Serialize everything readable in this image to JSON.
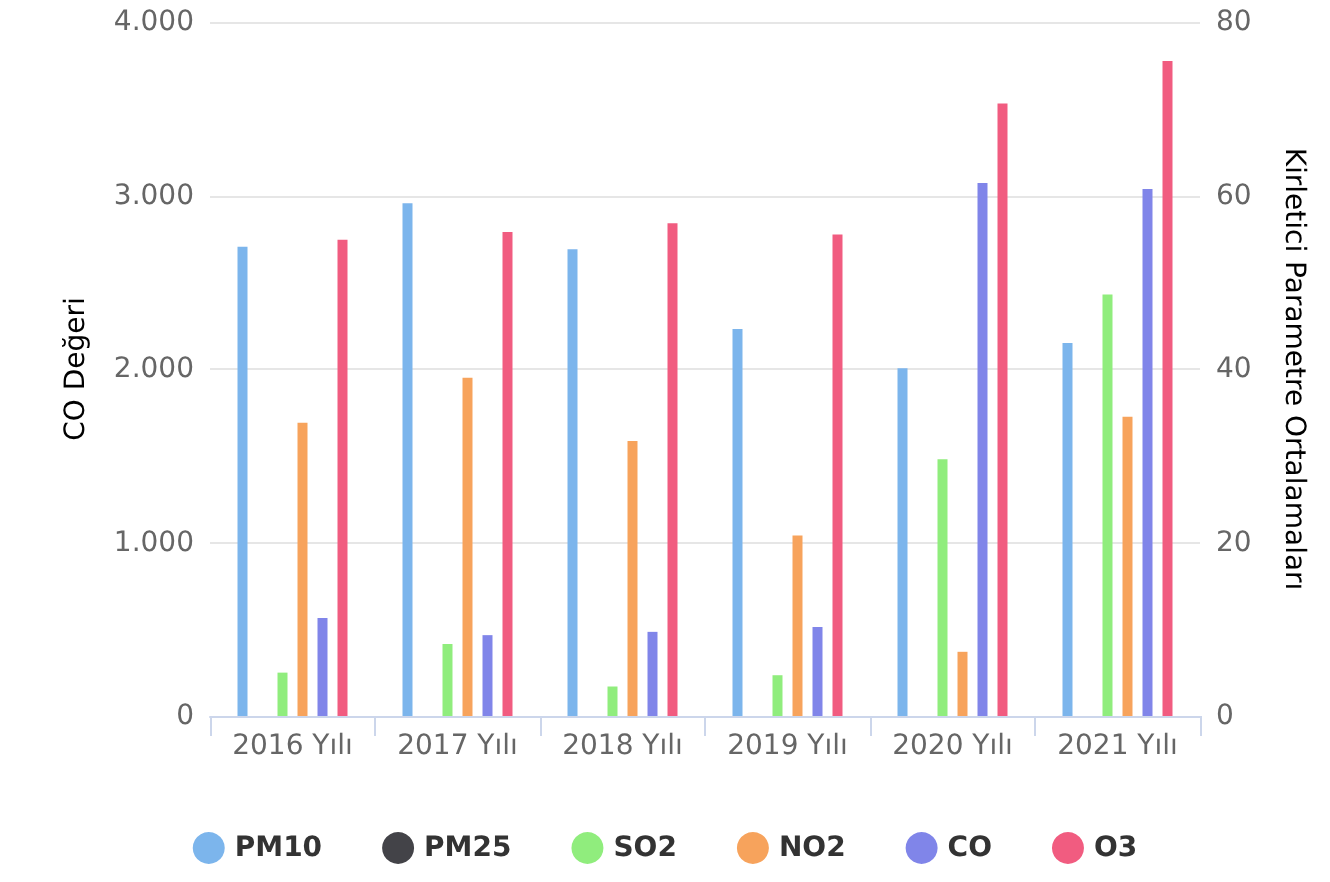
{
  "chart_data": {
    "type": "bar",
    "ylabel": "CO Değeri",
    "y2label": "Kirletici Parametre Ortalamaları",
    "categories": [
      "2016 Yılı",
      "2017 Yılı",
      "2018 Yılı",
      "2019 Yılı",
      "2020 Yılı",
      "2021 Yılı"
    ],
    "series": [
      {
        "name": "PM10",
        "color": "#7cb5ec",
        "axis": "y2",
        "values": [
          54.1,
          59.1,
          53.8,
          44.6,
          40.1,
          43.0
        ]
      },
      {
        "name": "PM25",
        "color": "#434348",
        "axis": "y2",
        "values": [
          null,
          null,
          null,
          null,
          null,
          null
        ]
      },
      {
        "name": "SO2",
        "color": "#90ed7d",
        "axis": "y2",
        "values": [
          5.0,
          8.3,
          3.4,
          4.7,
          29.6,
          48.6
        ]
      },
      {
        "name": "NO2",
        "color": "#f7a35c",
        "axis": "y2",
        "values": [
          33.8,
          39.0,
          31.7,
          20.8,
          7.4,
          34.5
        ]
      },
      {
        "name": "CO",
        "color": "#8085e9",
        "axis": "y",
        "values": [
          565,
          466,
          485,
          513,
          3072,
          3038
        ]
      },
      {
        "name": "O3",
        "color": "#f15c80",
        "axis": "y2",
        "values": [
          54.9,
          55.8,
          56.8,
          55.5,
          70.6,
          75.5
        ]
      }
    ],
    "ylim": [
      0,
      4000
    ],
    "yticks": [
      0,
      {
        "value": 1000,
        "label": "1.000"
      },
      {
        "value": 2000,
        "label": "2.000"
      },
      {
        "value": 3000,
        "label": "3.000"
      },
      {
        "value": 4000,
        "label": "4.000"
      }
    ],
    "y2lim": [
      0,
      80
    ],
    "y2ticks": [
      0,
      20,
      40,
      60,
      80
    ],
    "grid": "y",
    "legend": "bottom"
  }
}
